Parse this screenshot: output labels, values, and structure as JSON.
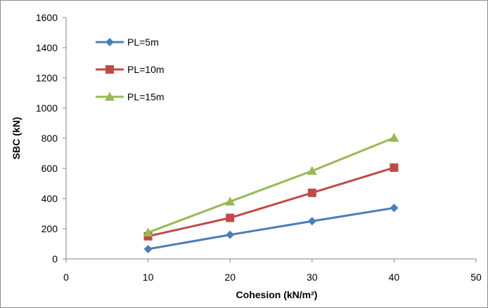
{
  "chart_data": {
    "type": "line",
    "title": "",
    "xlabel": "Cohesion (kN/m²)",
    "ylabel": "SBC (kN)",
    "xlim": [
      0,
      50
    ],
    "ylim": [
      0,
      1600
    ],
    "xticks": [
      0,
      10,
      20,
      30,
      40,
      50
    ],
    "yticks": [
      0,
      200,
      400,
      600,
      800,
      1000,
      1200,
      1400,
      1600
    ],
    "x": [
      10,
      20,
      30,
      40
    ],
    "grid": false,
    "legend_position": "top-left",
    "series": [
      {
        "name": "PL=5m",
        "values": [
          65,
          160,
          250,
          338
        ],
        "color": "#4a7ebb",
        "marker": "diamond"
      },
      {
        "name": "PL=10m",
        "values": [
          150,
          272,
          438,
          605
        ],
        "color": "#be4b48",
        "marker": "square"
      },
      {
        "name": "PL=15m",
        "values": [
          175,
          380,
          583,
          803
        ],
        "color": "#98b954",
        "marker": "triangle"
      }
    ]
  }
}
